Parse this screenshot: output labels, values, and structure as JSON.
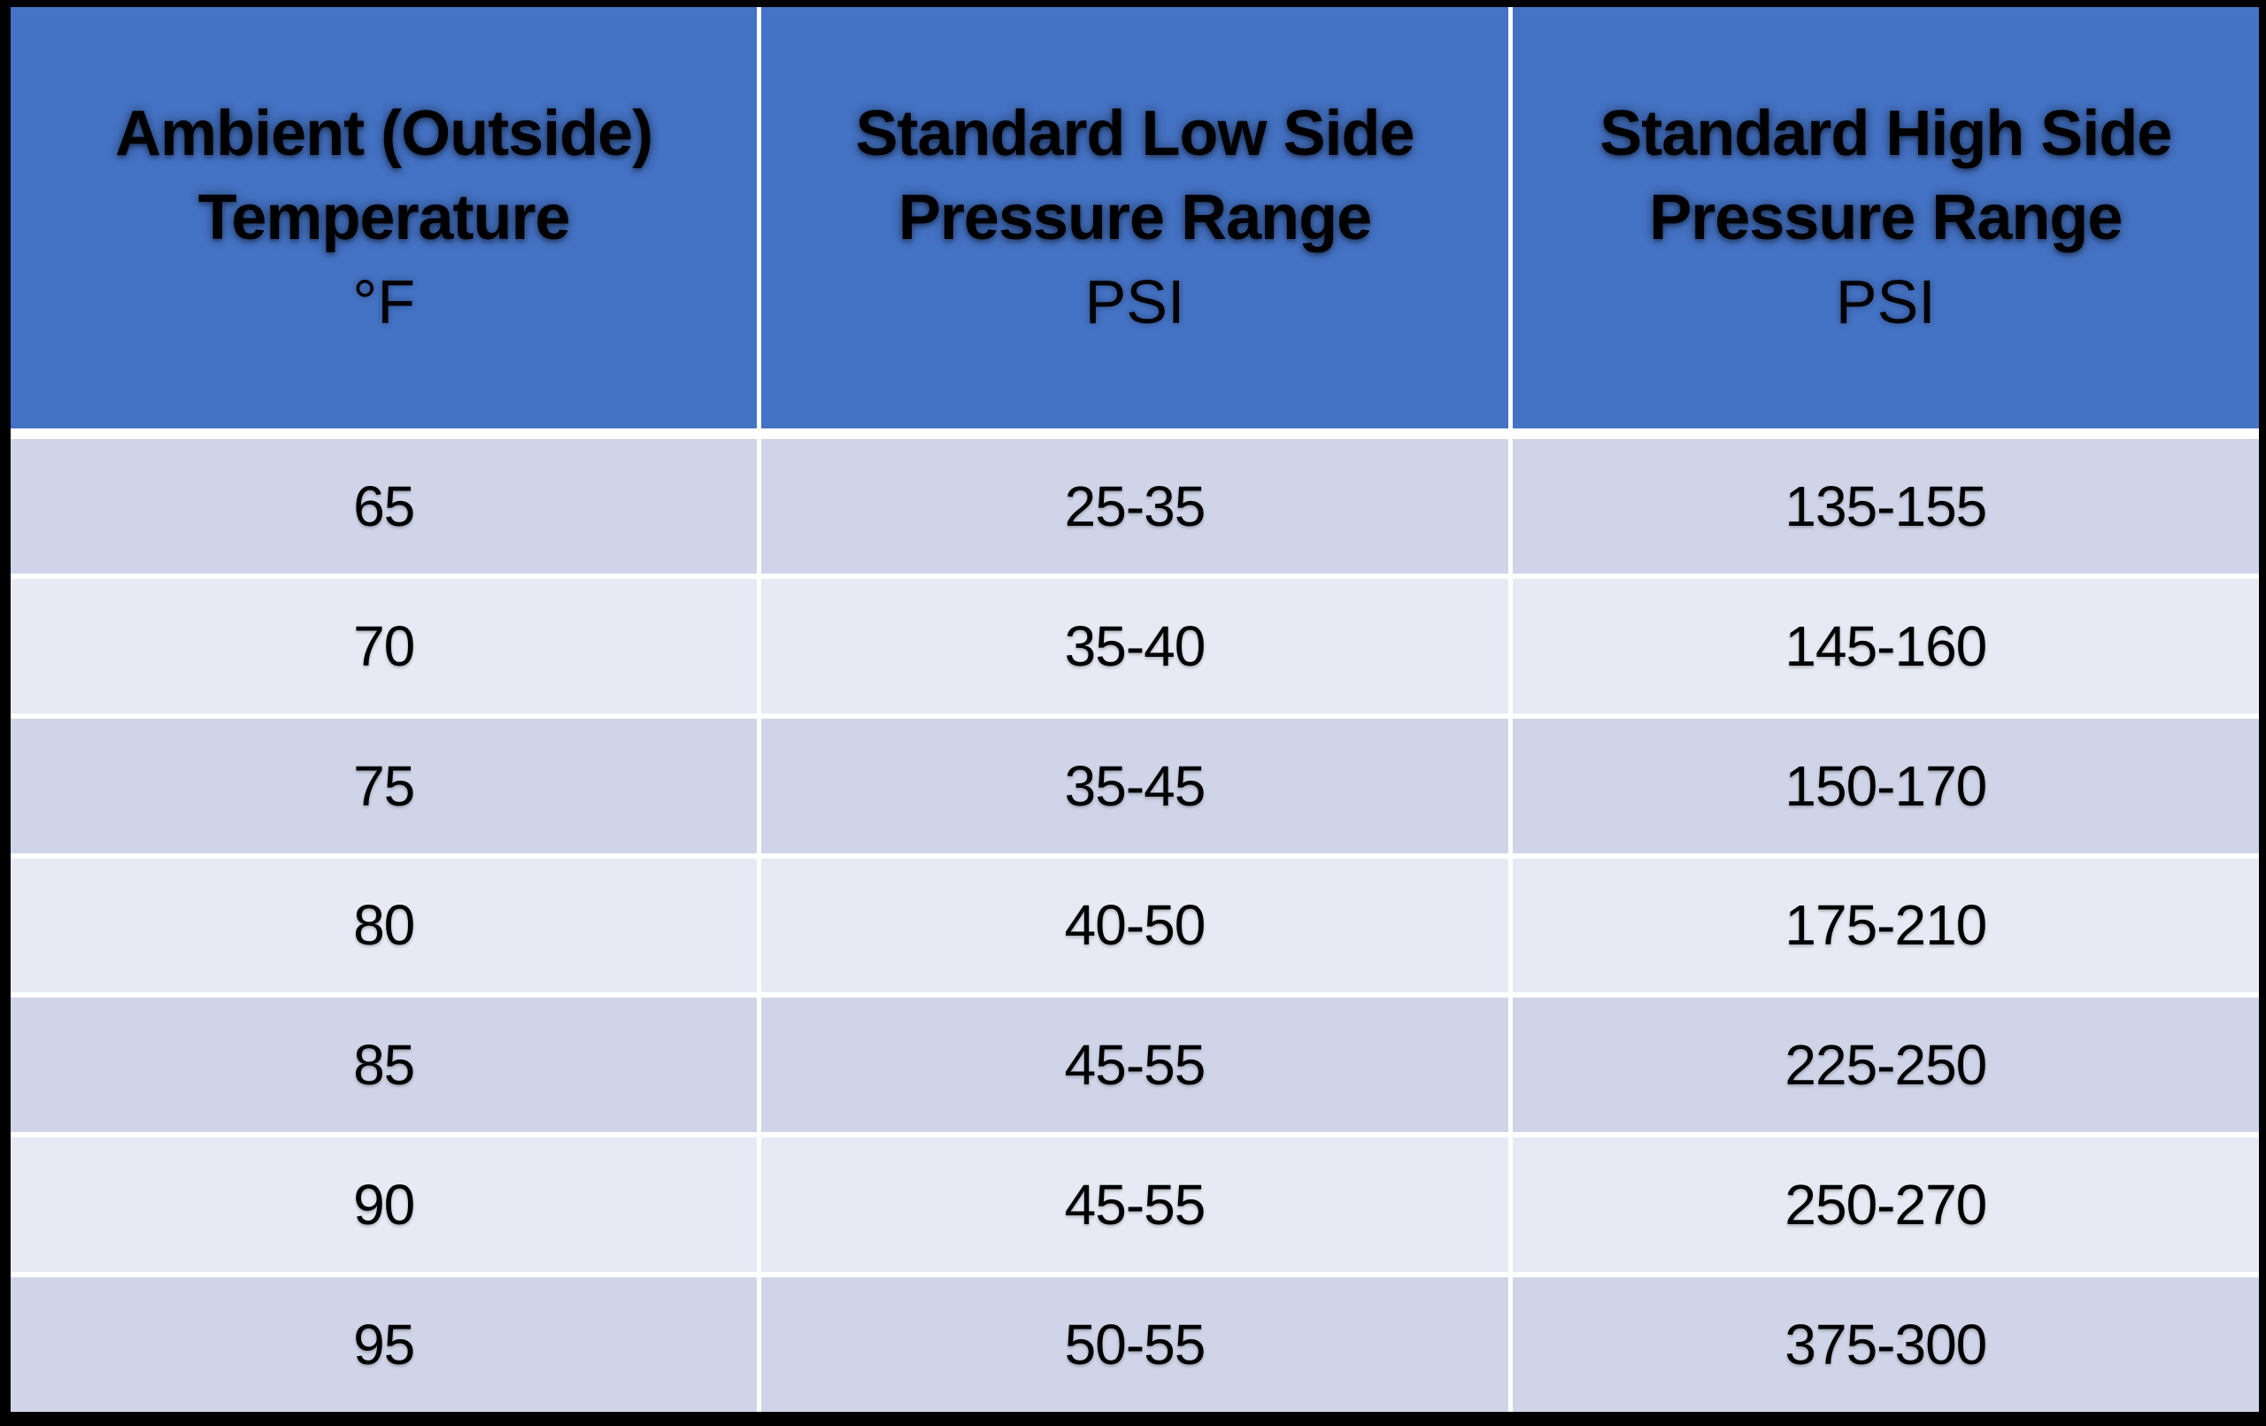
{
  "table": {
    "columns": [
      {
        "title_lines": [
          "Ambient (Outside)",
          "Temperature"
        ],
        "unit": "°F"
      },
      {
        "title_lines": [
          "Standard Low Side",
          "Pressure Range"
        ],
        "unit": "PSI"
      },
      {
        "title_lines": [
          "Standard High Side",
          "Pressure Range"
        ],
        "unit": "PSI"
      }
    ],
    "rows": [
      [
        "65",
        "25-35",
        "135-155"
      ],
      [
        "70",
        "35-40",
        "145-160"
      ],
      [
        "75",
        "35-45",
        "150-170"
      ],
      [
        "80",
        "40-50",
        "175-210"
      ],
      [
        "85",
        "45-55",
        "225-250"
      ],
      [
        "90",
        "45-55",
        "250-270"
      ],
      [
        "95",
        "50-55",
        "375-300"
      ]
    ]
  },
  "colors": {
    "header_bg": "#4472C4",
    "row_dark": "#CFD4E8",
    "row_light": "#E7EAF4",
    "grid_line": "#FFFFFF",
    "outer_border": "#000000",
    "text": "#000000"
  },
  "chart_data": {
    "type": "table",
    "title": "",
    "columns": [
      "Ambient (Outside) Temperature °F",
      "Standard Low Side Pressure Range PSI",
      "Standard High Side Pressure Range PSI"
    ],
    "rows": [
      [
        "65",
        "25-35",
        "135-155"
      ],
      [
        "70",
        "35-40",
        "145-160"
      ],
      [
        "75",
        "35-45",
        "150-170"
      ],
      [
        "80",
        "40-50",
        "175-210"
      ],
      [
        "85",
        "45-55",
        "225-250"
      ],
      [
        "90",
        "45-55",
        "250-270"
      ],
      [
        "95",
        "50-55",
        "375-300"
      ]
    ]
  }
}
